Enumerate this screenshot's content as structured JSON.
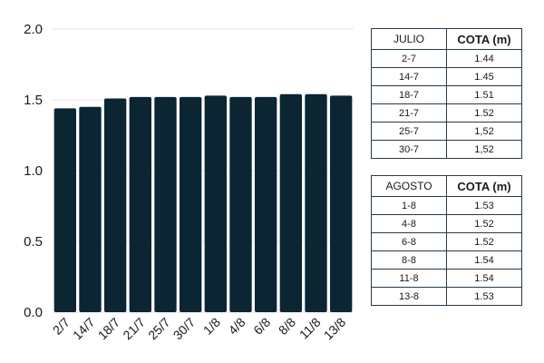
{
  "chart_data": {
    "type": "bar",
    "categories": [
      "2/7",
      "14/7",
      "18/7",
      "21/7",
      "25/7",
      "30/7",
      "1/8",
      "4/8",
      "6/8",
      "8/8",
      "11/8",
      "13/8"
    ],
    "values": [
      1.44,
      1.45,
      1.51,
      1.52,
      1.52,
      1.52,
      1.53,
      1.52,
      1.52,
      1.54,
      1.54,
      1.53
    ],
    "ylim": [
      0,
      2
    ],
    "yticks": [
      "0.0",
      "0.5",
      "1.0",
      "1.5",
      "2.0"
    ],
    "ytick_values": [
      0,
      0.5,
      1.0,
      1.5,
      2.0
    ],
    "grid": true,
    "bar_color": "#0b2533",
    "grid_color": "#e6e6e6"
  },
  "tables": {
    "julio": {
      "header": [
        "JULIO",
        "COTA (m)"
      ],
      "rows": [
        [
          "2-7",
          "1.44"
        ],
        [
          "14-7",
          "1.45"
        ],
        [
          "18-7",
          "1.51"
        ],
        [
          "21-7",
          "1.52"
        ],
        [
          "25-7",
          "1,52"
        ],
        [
          "30-7",
          "1,52"
        ]
      ]
    },
    "agosto": {
      "header": [
        "AGOSTO",
        "COTA (m)"
      ],
      "rows": [
        [
          "1-8",
          "1.53"
        ],
        [
          "4-8",
          "1.52"
        ],
        [
          "6-8",
          "1.52"
        ],
        [
          "8-8",
          "1.54"
        ],
        [
          "11-8",
          "1.54"
        ],
        [
          "13-8",
          "1.53"
        ]
      ]
    }
  }
}
